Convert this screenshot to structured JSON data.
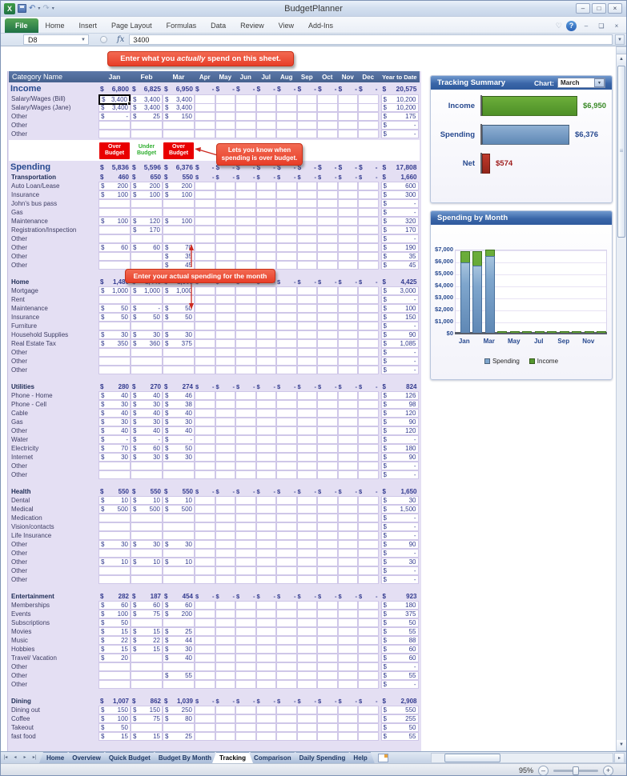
{
  "window": {
    "title": "BudgetPlanner"
  },
  "icons": {
    "excel_logo": "X",
    "undo": "↶",
    "redo": "↷",
    "caret": "▾",
    "minimize": "–",
    "maximize": "□",
    "close": "×",
    "restore": "❏",
    "help": "?",
    "heart": "♡",
    "dropdown": "▼",
    "up": "▲",
    "down": "▼",
    "left": "◂",
    "right": "▸",
    "zoom_out": "–",
    "zoom_in": "+"
  },
  "ribbon": {
    "tabs": [
      "File",
      "Home",
      "Insert",
      "Page Layout",
      "Formulas",
      "Data",
      "Review",
      "View",
      "Add-Ins"
    ],
    "active_tab": "File"
  },
  "formula_bar": {
    "cell_ref": "D8",
    "value": "3400",
    "fx_label": "fx"
  },
  "callouts": {
    "top_pre": "Enter what you ",
    "top_em": "actually",
    "top_post": " spend on this sheet.",
    "over_line1": "Lets you know when",
    "over_line2": "spending is over budget.",
    "actual": "Enter your actual spending for the month"
  },
  "sheet": {
    "header": {
      "category": "Category Name",
      "ytd": "Year to Date"
    },
    "months": [
      "Jan",
      "Feb",
      "Mar",
      "Apr",
      "May",
      "Jun",
      "Jul",
      "Aug",
      "Sep",
      "Oct",
      "Nov",
      "Dec"
    ],
    "blocks": [
      {
        "type": "header"
      },
      {
        "type": "total",
        "cls": "big",
        "label": "Income",
        "m": [
          "6,800",
          "6,825",
          "6,950"
        ],
        "ytd": "20,575"
      },
      {
        "type": "row",
        "label": "Salary/Wages (Bill)",
        "m": [
          "3,400",
          "3,400",
          "3,400"
        ],
        "ytd": "10,200",
        "sel": 0
      },
      {
        "type": "row",
        "label": "Salary/Wages (Jane)",
        "m": [
          "3,400",
          "3,400",
          "3,400"
        ],
        "ytd": "10,200"
      },
      {
        "type": "row",
        "label": "Other",
        "m": [
          "-",
          "25",
          "150"
        ],
        "ytd": "175"
      },
      {
        "type": "row",
        "label": "Other",
        "m": [
          "",
          "",
          ""
        ],
        "ytd": "-"
      },
      {
        "type": "row",
        "label": "Other",
        "m": [
          "",
          "",
          ""
        ],
        "ytd": "-"
      },
      {
        "type": "flags",
        "items": [
          {
            "label": "Over Budget",
            "state": "over"
          },
          {
            "label": "Under Budget",
            "state": "under"
          },
          {
            "label": "Over Budget",
            "state": "over"
          }
        ]
      },
      {
        "type": "total",
        "cls": "big",
        "label": "Spending",
        "m": [
          "5,836",
          "5,596",
          "6,376"
        ],
        "ytd": "17,808"
      },
      {
        "type": "total",
        "cls": "sec",
        "label": "Transportation",
        "m": [
          "460",
          "650",
          "550"
        ],
        "ytd": "1,660"
      },
      {
        "type": "row",
        "label": "Auto Loan/Lease",
        "m": [
          "200",
          "200",
          "200"
        ],
        "ytd": "600"
      },
      {
        "type": "row",
        "label": "Insurance",
        "m": [
          "100",
          "100",
          "100"
        ],
        "ytd": "300"
      },
      {
        "type": "row",
        "label": "John's bus pass",
        "m": [
          "",
          "",
          ""
        ],
        "ytd": "-"
      },
      {
        "type": "row",
        "label": "Gas",
        "m": [
          "",
          "",
          ""
        ],
        "ytd": "-"
      },
      {
        "type": "row",
        "label": "Maintenance",
        "m": [
          "100",
          "120",
          "100"
        ],
        "ytd": "320"
      },
      {
        "type": "row",
        "label": "Registration/Inspection",
        "m": [
          "",
          "170",
          ""
        ],
        "ytd": "170"
      },
      {
        "type": "row",
        "label": "Other",
        "m": [
          "",
          "",
          ""
        ],
        "ytd": "-"
      },
      {
        "type": "row",
        "label": "Other",
        "m": [
          "60",
          "60",
          "70"
        ],
        "ytd": "190"
      },
      {
        "type": "row",
        "label": "Other",
        "m": [
          "",
          "",
          "35"
        ],
        "ytd": "35"
      },
      {
        "type": "row",
        "label": "Other",
        "m": [
          "",
          "",
          "45"
        ],
        "ytd": "45"
      },
      {
        "type": "total",
        "cls": "sec",
        "gap": true,
        "label": "Home",
        "m": [
          "1,480",
          "1,440",
          "1,505"
        ],
        "ytd": "4,425"
      },
      {
        "type": "row",
        "label": "Mortgage",
        "m": [
          "1,000",
          "1,000",
          "1,000"
        ],
        "ytd": "3,000"
      },
      {
        "type": "row",
        "label": "Rent",
        "m": [
          "",
          "",
          ""
        ],
        "ytd": "-"
      },
      {
        "type": "row",
        "label": "Maintenance",
        "m": [
          "50",
          "-",
          "50"
        ],
        "ytd": "100"
      },
      {
        "type": "row",
        "label": "Insurance",
        "m": [
          "50",
          "50",
          "50"
        ],
        "ytd": "150"
      },
      {
        "type": "row",
        "label": "Furniture",
        "m": [
          "",
          "",
          ""
        ],
        "ytd": "-"
      },
      {
        "type": "row",
        "label": "Household Supplies",
        "m": [
          "30",
          "30",
          "30"
        ],
        "ytd": "90"
      },
      {
        "type": "row",
        "label": "Real Estate Tax",
        "m": [
          "350",
          "360",
          "375"
        ],
        "ytd": "1,085"
      },
      {
        "type": "row",
        "label": "Other",
        "m": [
          "",
          "",
          ""
        ],
        "ytd": "-"
      },
      {
        "type": "row",
        "label": "Other",
        "m": [
          "",
          "",
          ""
        ],
        "ytd": "-"
      },
      {
        "type": "row",
        "label": "Other",
        "m": [
          "",
          "",
          ""
        ],
        "ytd": "-"
      },
      {
        "type": "total",
        "cls": "sec",
        "gap": true,
        "label": "Utilities",
        "m": [
          "280",
          "270",
          "274"
        ],
        "ytd": "824"
      },
      {
        "type": "row",
        "label": "Phone - Home",
        "m": [
          "40",
          "40",
          "46"
        ],
        "ytd": "126"
      },
      {
        "type": "row",
        "label": "Phone - Cell",
        "m": [
          "30",
          "30",
          "38"
        ],
        "ytd": "98"
      },
      {
        "type": "row",
        "label": "Cable",
        "m": [
          "40",
          "40",
          "40"
        ],
        "ytd": "120"
      },
      {
        "type": "row",
        "label": "Gas",
        "m": [
          "30",
          "30",
          "30"
        ],
        "ytd": "90"
      },
      {
        "type": "row",
        "label": "Other",
        "m": [
          "40",
          "40",
          "40"
        ],
        "ytd": "120"
      },
      {
        "type": "row",
        "label": "Water",
        "m": [
          "-",
          "-",
          "-"
        ],
        "ytd": "-"
      },
      {
        "type": "row",
        "label": "Electricity",
        "m": [
          "70",
          "60",
          "50"
        ],
        "ytd": "180"
      },
      {
        "type": "row",
        "label": "Internet",
        "m": [
          "30",
          "30",
          "30"
        ],
        "ytd": "90"
      },
      {
        "type": "row",
        "label": "Other",
        "m": [
          "",
          "",
          ""
        ],
        "ytd": "-"
      },
      {
        "type": "row",
        "label": "Other",
        "m": [
          "",
          "",
          ""
        ],
        "ytd": "-"
      },
      {
        "type": "total",
        "cls": "sec",
        "gap": true,
        "label": "Health",
        "m": [
          "550",
          "550",
          "550"
        ],
        "ytd": "1,650"
      },
      {
        "type": "row",
        "label": "Dental",
        "m": [
          "10",
          "10",
          "10"
        ],
        "ytd": "30"
      },
      {
        "type": "row",
        "label": "Medical",
        "m": [
          "500",
          "500",
          "500"
        ],
        "ytd": "1,500"
      },
      {
        "type": "row",
        "label": "Medication",
        "m": [
          "",
          "",
          ""
        ],
        "ytd": "-"
      },
      {
        "type": "row",
        "label": "Vision/contacts",
        "m": [
          "",
          "",
          ""
        ],
        "ytd": "-"
      },
      {
        "type": "row",
        "label": "Life Insurance",
        "m": [
          "",
          "",
          ""
        ],
        "ytd": "-"
      },
      {
        "type": "row",
        "label": "Other",
        "m": [
          "30",
          "30",
          "30"
        ],
        "ytd": "90"
      },
      {
        "type": "row",
        "label": "Other",
        "m": [
          "",
          "",
          ""
        ],
        "ytd": "-"
      },
      {
        "type": "row",
        "label": "Other",
        "m": [
          "10",
          "10",
          "10"
        ],
        "ytd": "30"
      },
      {
        "type": "row",
        "label": "Other",
        "m": [
          "",
          "",
          ""
        ],
        "ytd": "-"
      },
      {
        "type": "row",
        "label": "Other",
        "m": [
          "",
          "",
          ""
        ],
        "ytd": "-"
      },
      {
        "type": "total",
        "cls": "sec",
        "gap": true,
        "label": "Entertainment",
        "m": [
          "282",
          "187",
          "454"
        ],
        "ytd": "923"
      },
      {
        "type": "row",
        "label": "Memberships",
        "m": [
          "60",
          "60",
          "60"
        ],
        "ytd": "180"
      },
      {
        "type": "row",
        "label": "Events",
        "m": [
          "100",
          "75",
          "200"
        ],
        "ytd": "375"
      },
      {
        "type": "row",
        "label": "Subscriptions",
        "m": [
          "50",
          "",
          ""
        ],
        "ytd": "50"
      },
      {
        "type": "row",
        "label": "Movies",
        "m": [
          "15",
          "15",
          "25"
        ],
        "ytd": "55"
      },
      {
        "type": "row",
        "label": "Music",
        "m": [
          "22",
          "22",
          "44"
        ],
        "ytd": "88"
      },
      {
        "type": "row",
        "label": "Hobbies",
        "m": [
          "15",
          "15",
          "30"
        ],
        "ytd": "60"
      },
      {
        "type": "row",
        "label": "Travel/ Vacation",
        "m": [
          "20",
          "",
          "40"
        ],
        "ytd": "60"
      },
      {
        "type": "row",
        "label": "Other",
        "m": [
          "",
          "",
          ""
        ],
        "ytd": "-"
      },
      {
        "type": "row",
        "label": "Other",
        "m": [
          "",
          "",
          "55"
        ],
        "ytd": "55"
      },
      {
        "type": "row",
        "label": "Other",
        "m": [
          "",
          "",
          ""
        ],
        "ytd": "-"
      },
      {
        "type": "total",
        "cls": "sec",
        "gap": true,
        "label": "Dining",
        "m": [
          "1,007",
          "862",
          "1,039"
        ],
        "ytd": "2,908"
      },
      {
        "type": "row",
        "label": "Dining out",
        "m": [
          "150",
          "150",
          "250"
        ],
        "ytd": "550"
      },
      {
        "type": "row",
        "label": "Coffee",
        "m": [
          "100",
          "75",
          "80"
        ],
        "ytd": "255"
      },
      {
        "type": "row",
        "label": "Takeout",
        "m": [
          "50",
          "",
          ""
        ],
        "ytd": "50"
      },
      {
        "type": "row",
        "label": "fast food",
        "m": [
          "15",
          "15",
          "25"
        ],
        "ytd": "55"
      }
    ]
  },
  "panels": {
    "tracking": {
      "title": "Tracking Summary",
      "chart_label": "Chart:",
      "chart_value": "March",
      "max": 7000,
      "bars": [
        {
          "label": "Income",
          "value": "$6,950",
          "num": 6950,
          "color": "linear-gradient(#6cae3a,#4d8f27)",
          "text_color": "#3a8a28"
        },
        {
          "label": "Spending",
          "value": "$6,376",
          "num": 6376,
          "color": "linear-gradient(180deg,#8fb0d4,#5f88b5)",
          "text_color": "#27498f"
        },
        {
          "label": "Net",
          "value": "$574",
          "num": 574,
          "color": "linear-gradient(#c0392b,#93251a)",
          "text_color": "#a01f1f"
        }
      ]
    },
    "by_month": {
      "title": "Spending by Month",
      "max": 7000,
      "yticks": [
        "$7,000",
        "$6,000",
        "$5,000",
        "$4,000",
        "$3,000",
        "$2,000",
        "$1,000",
        "$0"
      ],
      "xticks": [
        "Jan",
        "Mar",
        "May",
        "Jul",
        "Sep",
        "Nov"
      ],
      "legend": [
        {
          "label": "Spending",
          "color": "#7fa6cd"
        },
        {
          "label": "Income",
          "color": "#55982e"
        }
      ],
      "spending": [
        5836,
        5596,
        6376,
        0,
        0,
        0,
        0,
        0,
        0,
        0,
        0,
        0
      ],
      "income": [
        6800,
        6825,
        6950,
        0,
        0,
        0,
        0,
        0,
        0,
        0,
        0,
        0
      ]
    }
  },
  "tabs": {
    "nav": [
      "|◂",
      "◂",
      "▸",
      "▸|"
    ],
    "items": [
      "Home",
      "Overview",
      "Quick Budget",
      "Budget By Month",
      "Tracking",
      "Comparison",
      "Daily Spending",
      "Help"
    ],
    "active": "Tracking"
  },
  "status": {
    "zoom": "95%"
  },
  "chart_data": [
    {
      "type": "bar",
      "title": "Tracking Summary (Chart: March)",
      "categories": [
        "Income",
        "Spending",
        "Net"
      ],
      "values": [
        6950,
        6376,
        574
      ],
      "data_labels": [
        "$6,950",
        "$6,376",
        "$574"
      ],
      "colors": [
        "#4d8f27",
        "#5f88b5",
        "#a82a1e"
      ],
      "xlabel": "",
      "ylabel": "",
      "xlim": [
        0,
        7000
      ],
      "legend_position": "none"
    },
    {
      "type": "bar",
      "title": "Spending by Month",
      "categories": [
        "Jan",
        "Feb",
        "Mar",
        "Apr",
        "May",
        "Jun",
        "Jul",
        "Aug",
        "Sep",
        "Oct",
        "Nov",
        "Dec"
      ],
      "series": [
        {
          "name": "Spending",
          "color": "#7fa6cd",
          "values": [
            5836,
            5596,
            6376,
            0,
            0,
            0,
            0,
            0,
            0,
            0,
            0,
            0
          ]
        },
        {
          "name": "Income",
          "color": "#55982e",
          "values": [
            6800,
            6825,
            6950,
            0,
            0,
            0,
            0,
            0,
            0,
            0,
            0,
            0
          ]
        }
      ],
      "xlabel": "",
      "ylabel": "",
      "ylim": [
        0,
        7000
      ],
      "ytick_labels": [
        "$0",
        "$1,000",
        "$2,000",
        "$3,000",
        "$4,000",
        "$5,000",
        "$6,000",
        "$7,000"
      ],
      "xtick_labels": [
        "Jan",
        "Mar",
        "May",
        "Jul",
        "Sep",
        "Nov"
      ],
      "grid": true,
      "legend_position": "bottom"
    }
  ]
}
